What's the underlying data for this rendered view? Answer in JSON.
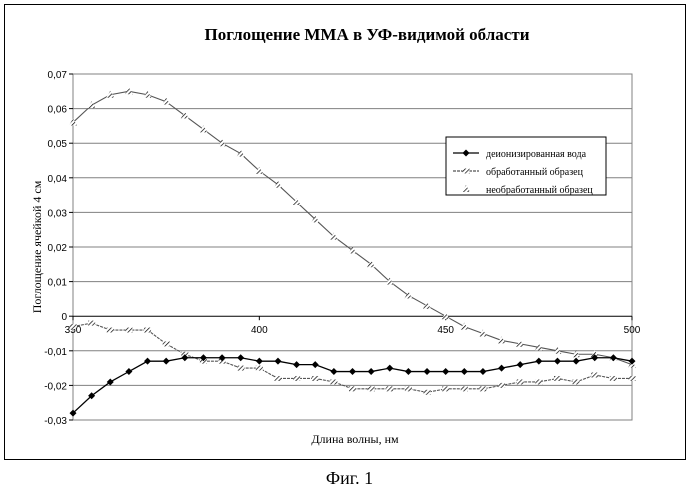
{
  "figure": {
    "caption": "Фиг. 1"
  },
  "chart_data": {
    "type": "line",
    "title": "Поглощение ММА в УФ-видимой области",
    "xlabel": "Длина волны, нм",
    "ylabel": "Поглощение ячейкой 4 см",
    "xlim": [
      350,
      500
    ],
    "ylim": [
      -0.03,
      0.07
    ],
    "x_ticks": [
      "350",
      "400",
      "450",
      "500"
    ],
    "y_ticks": [
      "-0,03",
      "-0,02",
      "-0,01",
      "0",
      "0,01",
      "0,02",
      "0,03",
      "0,04",
      "0,05",
      "0,06",
      "0,07"
    ],
    "grid": "horizontal",
    "legend_position": "right",
    "series": [
      {
        "name": "деионизированная вода",
        "color": "#000000",
        "marker": "diamond",
        "x": [
          350,
          355,
          360,
          365,
          370,
          375,
          380,
          385,
          390,
          395,
          400,
          405,
          410,
          415,
          420,
          425,
          430,
          435,
          440,
          445,
          450,
          455,
          460,
          465,
          470,
          475,
          480,
          485,
          490,
          495,
          500
        ],
        "y": [
          -0.028,
          -0.023,
          -0.019,
          -0.016,
          -0.013,
          -0.013,
          -0.012,
          -0.012,
          -0.012,
          -0.012,
          -0.013,
          -0.013,
          -0.014,
          -0.014,
          -0.016,
          -0.016,
          -0.016,
          -0.015,
          -0.016,
          -0.016,
          -0.016,
          -0.016,
          -0.016,
          -0.015,
          -0.014,
          -0.013,
          -0.013,
          -0.013,
          -0.012,
          -0.012,
          -0.013
        ]
      },
      {
        "name": "обработанный образец",
        "color": "#555555",
        "marker": "hatched-square",
        "x": [
          350,
          355,
          360,
          365,
          370,
          375,
          380,
          385,
          390,
          395,
          400,
          405,
          410,
          415,
          420,
          425,
          430,
          435,
          440,
          445,
          450,
          455,
          460,
          465,
          470,
          475,
          480,
          485,
          490,
          495,
          500
        ],
        "y": [
          -0.003,
          -0.002,
          -0.004,
          -0.004,
          -0.004,
          -0.008,
          -0.011,
          -0.013,
          -0.013,
          -0.015,
          -0.015,
          -0.018,
          -0.018,
          -0.018,
          -0.019,
          -0.021,
          -0.021,
          -0.021,
          -0.021,
          -0.022,
          -0.021,
          -0.021,
          -0.021,
          -0.02,
          -0.019,
          -0.019,
          -0.018,
          -0.019,
          -0.017,
          -0.018,
          -0.018
        ]
      },
      {
        "name": "необработанный образец",
        "color": "#333333",
        "marker": "hatched-triangle",
        "x": [
          350,
          355,
          360,
          365,
          370,
          375,
          380,
          385,
          390,
          395,
          400,
          405,
          410,
          415,
          420,
          425,
          430,
          435,
          440,
          445,
          450,
          455,
          460,
          465,
          470,
          475,
          480,
          485,
          490,
          495,
          500
        ],
        "y": [
          0.056,
          0.061,
          0.064,
          0.065,
          0.064,
          0.062,
          0.058,
          0.054,
          0.05,
          0.047,
          0.042,
          0.038,
          0.033,
          0.028,
          0.023,
          0.019,
          0.015,
          0.01,
          0.006,
          0.003,
          0.0,
          -0.003,
          -0.005,
          -0.007,
          -0.008,
          -0.009,
          -0.01,
          -0.011,
          -0.011,
          -0.012,
          -0.014
        ]
      }
    ]
  }
}
